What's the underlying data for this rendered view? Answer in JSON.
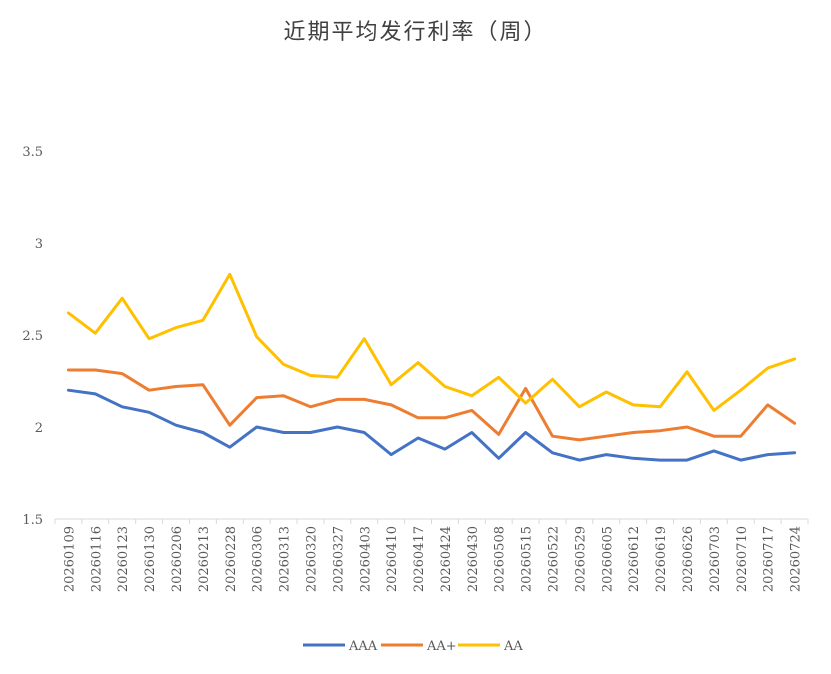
{
  "chart_data": {
    "type": "line",
    "title": "近期平均发行利率（周）",
    "xlabel": "",
    "ylabel": "",
    "ylim": [
      1.5,
      3.5
    ],
    "yticks": [
      "1.5",
      "2",
      "2.5",
      "3",
      "3.5"
    ],
    "grid": false,
    "legend_position": "bottom",
    "categories": [
      "20260109",
      "20260116",
      "20260123",
      "20260130",
      "20260206",
      "20260213",
      "20260228",
      "20260306",
      "20260313",
      "20260320",
      "20260327",
      "20260403",
      "20260410",
      "20260417",
      "20260424",
      "20260430",
      "20260508",
      "20260515",
      "20260522",
      "20260529",
      "20260605",
      "20260612",
      "20260619",
      "20260626",
      "20260703",
      "20260710",
      "20260717",
      "20260724"
    ],
    "series": [
      {
        "name": "AAA",
        "color": "#4472C4",
        "values": [
          2.2,
          2.18,
          2.11,
          2.08,
          2.01,
          1.97,
          1.89,
          2.0,
          1.97,
          1.97,
          2.0,
          1.97,
          1.85,
          1.94,
          1.88,
          1.97,
          1.83,
          1.97,
          1.86,
          1.82,
          1.85,
          1.83,
          1.82,
          1.82,
          1.87,
          1.82,
          1.85,
          1.86
        ]
      },
      {
        "name": "AA+",
        "color": "#ED7D31",
        "values": [
          2.31,
          2.31,
          2.29,
          2.2,
          2.22,
          2.23,
          2.01,
          2.16,
          2.17,
          2.11,
          2.15,
          2.15,
          2.12,
          2.05,
          2.05,
          2.09,
          1.96,
          2.21,
          1.95,
          1.93,
          1.95,
          1.97,
          1.98,
          2.0,
          1.95,
          1.95,
          2.12,
          2.02
        ]
      },
      {
        "name": "AA",
        "color": "#FFC000",
        "values": [
          2.62,
          2.51,
          2.7,
          2.48,
          2.54,
          2.58,
          2.83,
          2.49,
          2.34,
          2.28,
          2.27,
          2.48,
          2.23,
          2.35,
          2.22,
          2.17,
          2.27,
          2.13,
          2.26,
          2.11,
          2.19,
          2.12,
          2.11,
          2.3,
          2.09,
          2.2,
          2.32,
          2.37
        ]
      }
    ]
  }
}
